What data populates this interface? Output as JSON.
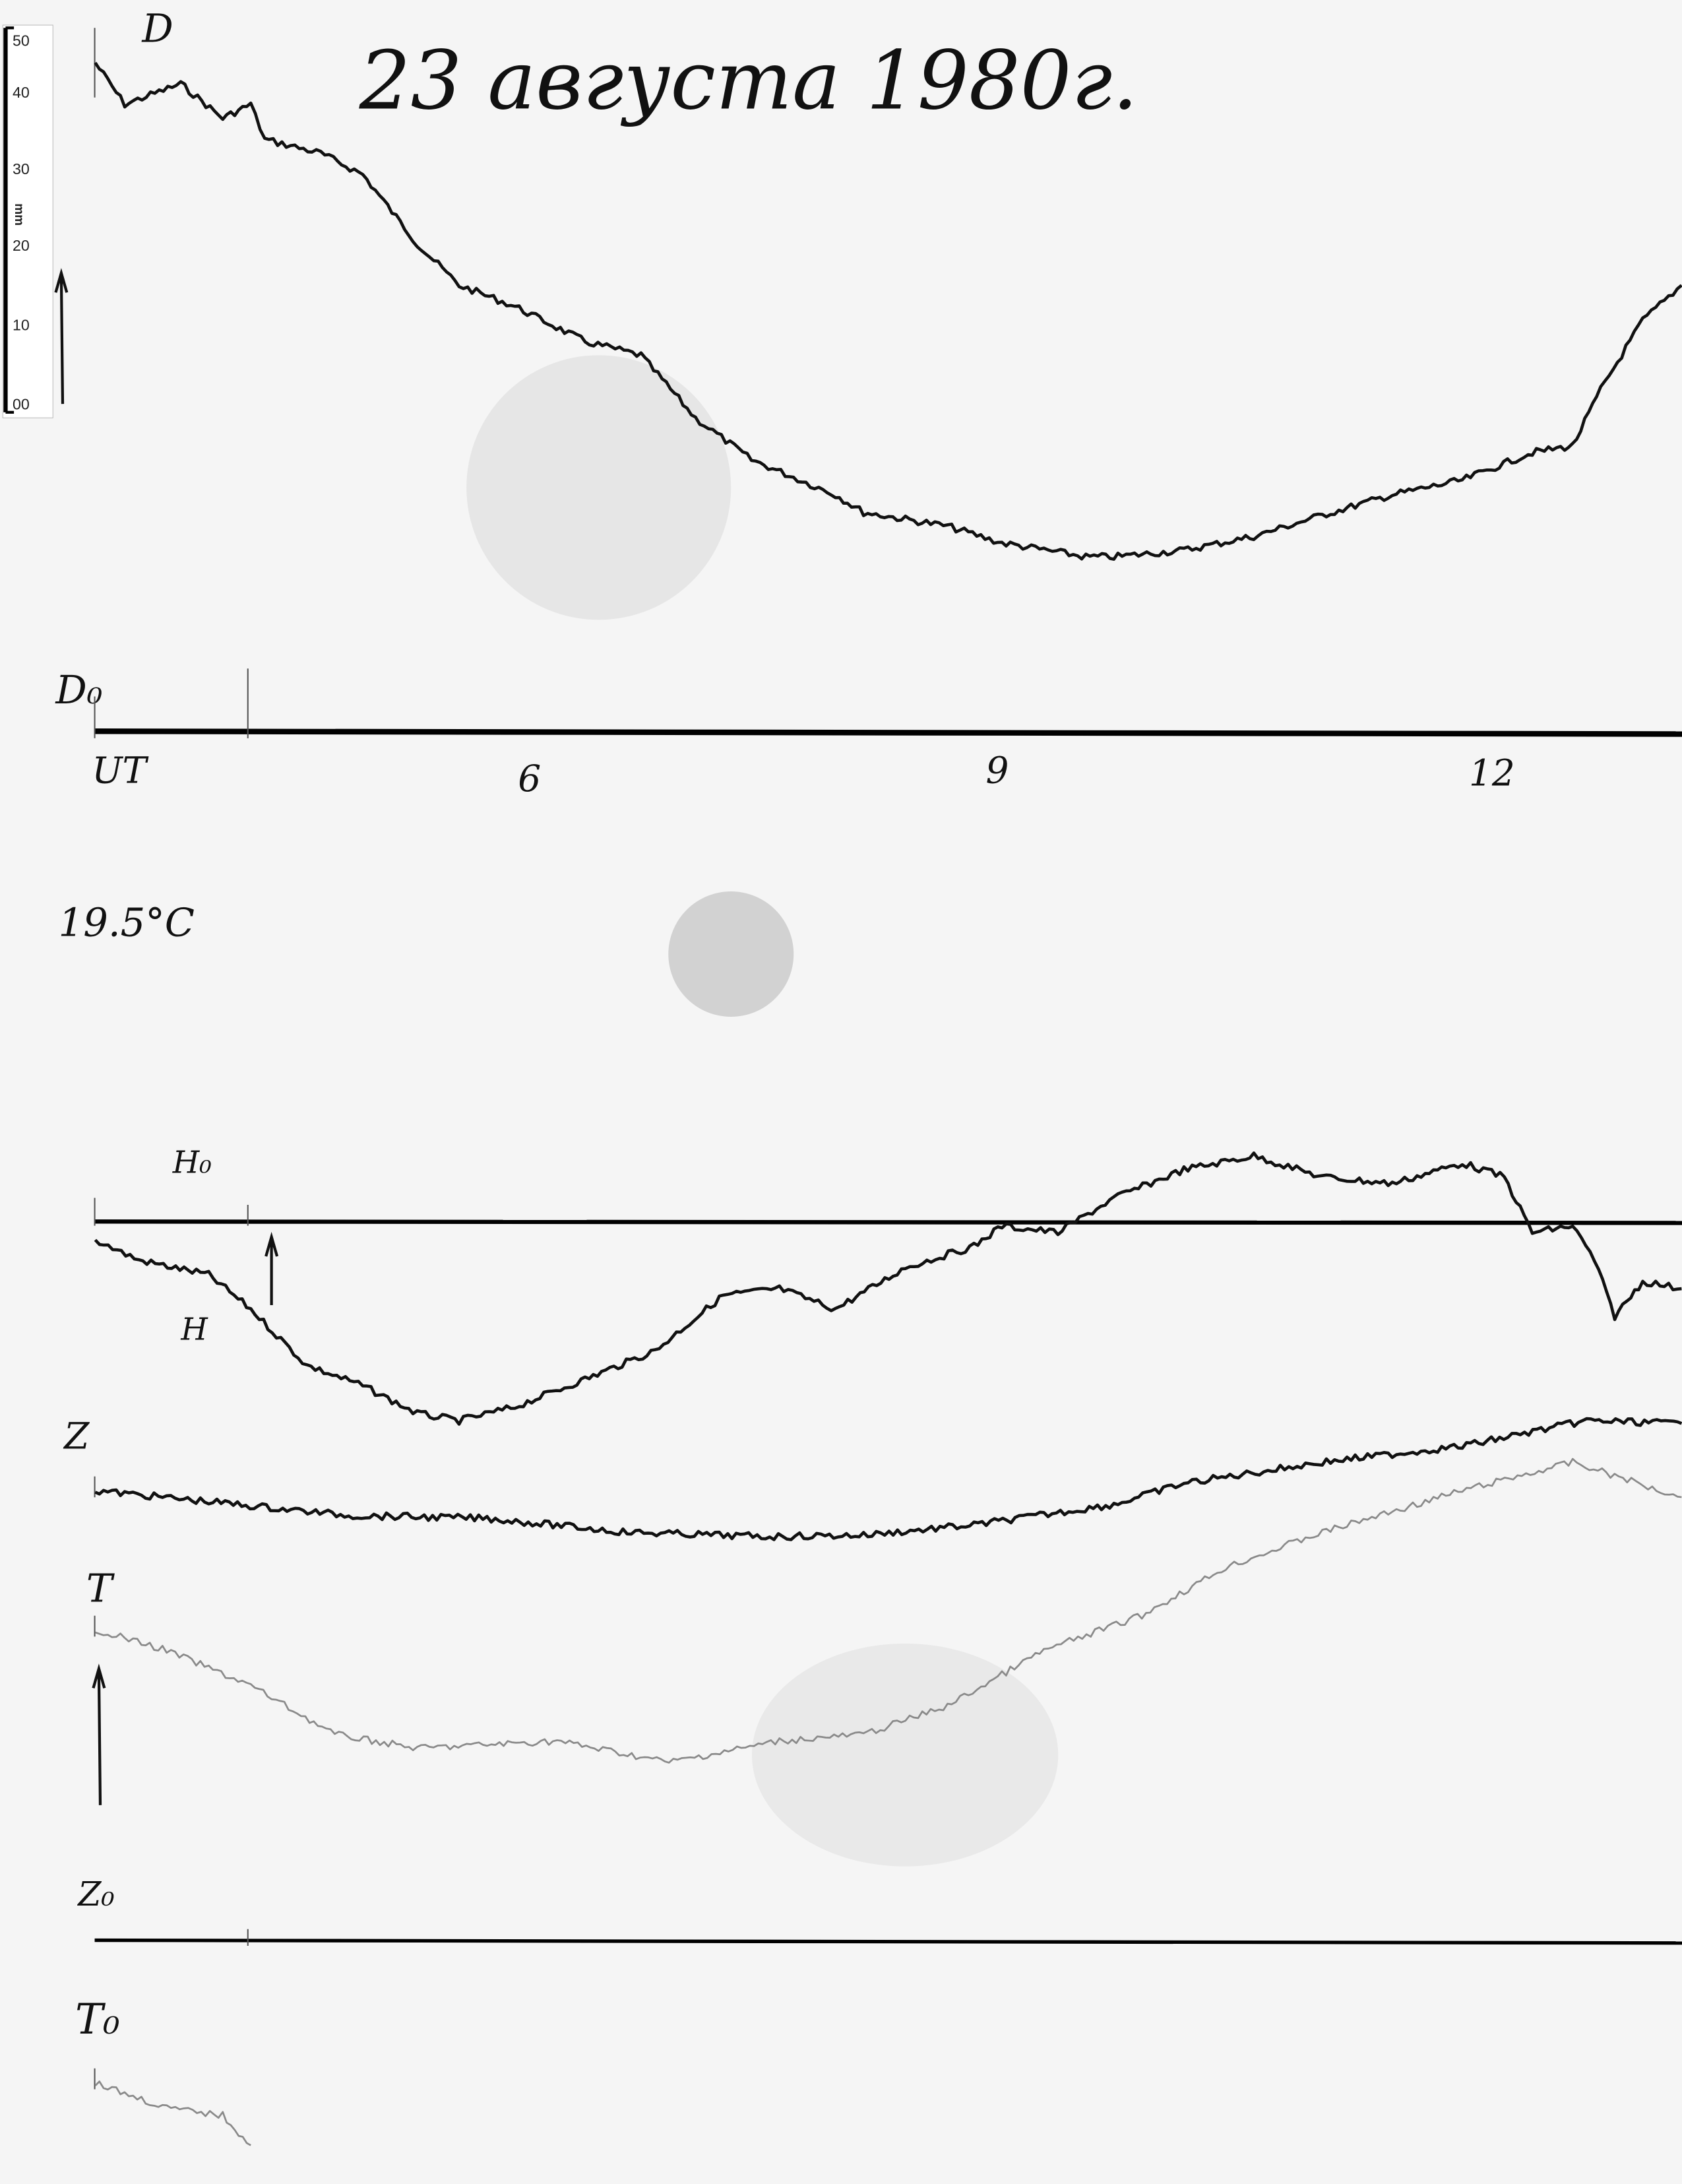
{
  "chart_data": {
    "type": "line",
    "title": "23 августа 1980г.",
    "x_unit_label": "UT",
    "x_ticks": [
      "6",
      "9",
      "12"
    ],
    "x_tick_values": [
      6,
      9,
      12
    ],
    "xlim": [
      3.2,
      13.4
    ],
    "temperature_label": "19.5°C",
    "scale_bar": {
      "unit": "mm",
      "ticks": [
        "00",
        "10",
        "20",
        "30",
        "40",
        "50"
      ]
    },
    "baselines": [
      {
        "name": "D₀",
        "label": "D₀"
      },
      {
        "name": "H₀",
        "label": "H₀"
      },
      {
        "name": "Z₀",
        "label": "Z₀"
      },
      {
        "name": "T₀",
        "label": "T₀"
      }
    ],
    "series": [
      {
        "name": "D",
        "label": "D",
        "baseline": "D₀",
        "color": "#111111",
        "points": [
          [
            3.21,
            91.6
          ],
          [
            3.4,
            85.9
          ],
          [
            3.76,
            88.7
          ],
          [
            4.03,
            84.0
          ],
          [
            4.21,
            85.9
          ],
          [
            4.3,
            81.1
          ],
          [
            4.66,
            79.2
          ],
          [
            4.93,
            76.3
          ],
          [
            5.28,
            66.8
          ],
          [
            5.55,
            61.1
          ],
          [
            5.91,
            58.2
          ],
          [
            6.36,
            53.4
          ],
          [
            6.72,
            51.5
          ],
          [
            7.07,
            42.9
          ],
          [
            7.43,
            37.2
          ],
          [
            7.97,
            32.4
          ],
          [
            8.15,
            30.0
          ],
          [
            8.69,
            28.1
          ],
          [
            9.04,
            25.8
          ],
          [
            9.58,
            23.9
          ],
          [
            9.76,
            23.9
          ],
          [
            10.21,
            24.8
          ],
          [
            10.66,
            26.7
          ],
          [
            11.1,
            29.6
          ],
          [
            11.55,
            32.4
          ],
          [
            12.0,
            34.4
          ],
          [
            12.45,
            38.2
          ],
          [
            12.71,
            39.1
          ],
          [
            12.89,
            46.8
          ],
          [
            13.16,
            56.3
          ],
          [
            13.41,
            61.1
          ]
        ]
      },
      {
        "name": "H",
        "label": "H",
        "baseline": "H₀",
        "color": "#111111",
        "points": [
          [
            3.21,
            -2.5
          ],
          [
            3.49,
            -5.3
          ],
          [
            3.94,
            -7.3
          ],
          [
            4.21,
            -12.0
          ],
          [
            4.57,
            -19.7
          ],
          [
            4.93,
            -22.5
          ],
          [
            5.28,
            -26.3
          ],
          [
            5.55,
            -27.3
          ],
          [
            5.91,
            -25.4
          ],
          [
            6.36,
            -21.6
          ],
          [
            6.81,
            -17.7
          ],
          [
            7.25,
            -10.1
          ],
          [
            7.61,
            -9.2
          ],
          [
            7.97,
            -12.0
          ],
          [
            8.42,
            -6.3
          ],
          [
            8.86,
            -3.4
          ],
          [
            9.04,
            -0.6
          ],
          [
            9.4,
            -1.5
          ],
          [
            9.76,
            3.2
          ],
          [
            10.21,
            7.1
          ],
          [
            10.66,
            9.0
          ],
          [
            11.1,
            6.1
          ],
          [
            11.55,
            5.2
          ],
          [
            12.0,
            8.0
          ],
          [
            12.27,
            6.1
          ],
          [
            12.45,
            -1.5
          ],
          [
            12.71,
            -0.6
          ],
          [
            12.85,
            -5.3
          ],
          [
            12.98,
            -13.0
          ],
          [
            13.16,
            -8.2
          ],
          [
            13.41,
            -9.2
          ]
        ]
      },
      {
        "name": "Z",
        "label": "Z",
        "baseline": "Z₀",
        "color": "#111111",
        "points": [
          [
            3.21,
            61.6
          ],
          [
            3.94,
            60.1
          ],
          [
            4.84,
            58.2
          ],
          [
            5.73,
            57.8
          ],
          [
            6.63,
            55.9
          ],
          [
            7.52,
            55.3
          ],
          [
            8.15,
            55.5
          ],
          [
            8.86,
            56.9
          ],
          [
            9.76,
            59.7
          ],
          [
            10.21,
            62.6
          ],
          [
            11.1,
            65.5
          ],
          [
            12.0,
            67.7
          ],
          [
            12.8,
            71.2
          ],
          [
            13.41,
            70.8
          ]
        ]
      },
      {
        "name": "T",
        "label": "T",
        "baseline": "T₀",
        "color": "#8a8a8a",
        "points": [
          [
            3.21,
            42.6
          ],
          [
            3.67,
            39.7
          ],
          [
            4.21,
            34.9
          ],
          [
            4.75,
            28.2
          ],
          [
            5.28,
            26.3
          ],
          [
            6.18,
            27.3
          ],
          [
            6.9,
            24.4
          ],
          [
            7.61,
            27.3
          ],
          [
            8.15,
            28.2
          ],
          [
            8.69,
            32.1
          ],
          [
            9.31,
            39.7
          ],
          [
            9.94,
            44.5
          ],
          [
            10.48,
            51.1
          ],
          [
            11.1,
            55.9
          ],
          [
            12.0,
            61.6
          ],
          [
            12.71,
            65.5
          ],
          [
            13.41,
            60.7
          ]
        ],
        "segment2": [
          [
            3.21,
            -19.5
          ],
          [
            3.67,
            -23.0
          ],
          [
            4.03,
            -24.0
          ],
          [
            4.21,
            -28.1
          ]
        ]
      }
    ]
  }
}
